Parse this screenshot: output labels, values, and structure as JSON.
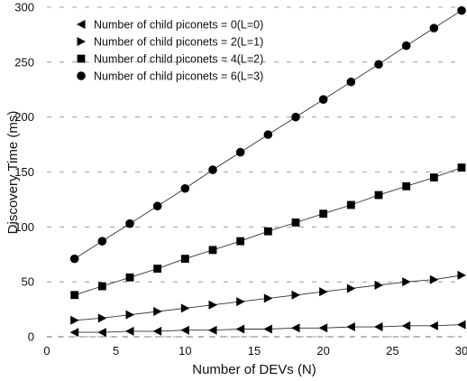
{
  "chart_data": {
    "type": "line",
    "title": "",
    "xlabel": "Number of DEVs (N)",
    "ylabel": "Discovery Time (ms)",
    "xlim": [
      0,
      30
    ],
    "ylim": [
      0,
      300
    ],
    "xticks": [
      0,
      5,
      10,
      15,
      20,
      25,
      30
    ],
    "yticks": [
      0,
      50,
      100,
      150,
      200,
      250,
      300
    ],
    "grid": "horizontal dashed",
    "legend_position": "top-left",
    "x": [
      2,
      4,
      6,
      8,
      10,
      12,
      14,
      16,
      18,
      20,
      22,
      24,
      26,
      28,
      30
    ],
    "series": [
      {
        "name": "Number of child piconets = 0(L=0)",
        "marker": "triangle-left",
        "values": [
          4,
          4,
          5,
          5,
          6,
          6,
          7,
          7,
          8,
          8,
          9,
          9,
          10,
          10,
          11
        ]
      },
      {
        "name": "Number of child piconets = 2(L=1)",
        "marker": "triangle-right",
        "values": [
          15,
          17,
          20,
          23,
          26,
          29,
          32,
          35,
          38,
          41,
          44,
          47,
          50,
          52,
          56
        ]
      },
      {
        "name": "Number of child piconets = 4(L=2)",
        "marker": "square",
        "values": [
          38,
          46,
          54,
          62,
          71,
          79,
          87,
          96,
          104,
          112,
          120,
          129,
          137,
          145,
          154
        ]
      },
      {
        "name": "Number of child piconets = 6(L=3)",
        "marker": "circle",
        "values": [
          71,
          87,
          103,
          119,
          135,
          152,
          168,
          184,
          200,
          216,
          232,
          248,
          265,
          281,
          297
        ]
      }
    ]
  }
}
